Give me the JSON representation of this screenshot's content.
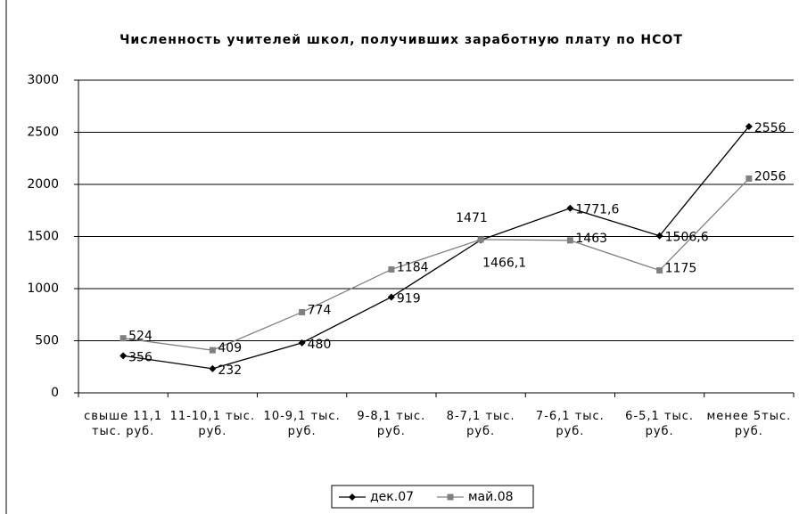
{
  "chart_data": {
    "type": "line",
    "title": "Численность учителей школ, получивших заработную плату по НСОТ",
    "categories": [
      "свыше 11,1 тыс. руб.",
      "11-10,1 тыс. руб.",
      "10-9,1 тыс. руб.",
      "9-8,1 тыс. руб.",
      "8-7,1 тыс. руб.",
      "7-6,1 тыс. руб.",
      "6-5,1 тыс. руб.",
      "менее 5тыс. руб."
    ],
    "series": [
      {
        "name": "дек.07",
        "color": "#000000",
        "marker": "diamond",
        "values": [
          356,
          232,
          480,
          919,
          1466.1,
          1771.6,
          1506.6,
          2556
        ],
        "value_labels": [
          "356",
          "232",
          "480",
          "919",
          "1466,1",
          "1771,6",
          "1506,6",
          "2556"
        ]
      },
      {
        "name": "май.08",
        "color": "#808080",
        "marker": "square",
        "values": [
          524,
          409,
          774,
          1184,
          1471,
          1463,
          1175,
          2056
        ]
      }
    ],
    "ylim": [
      0,
      3000
    ],
    "yticks": [
      0,
      500,
      1000,
      1500,
      2000,
      2500,
      3000
    ],
    "grid": true,
    "legend": "bottom"
  }
}
